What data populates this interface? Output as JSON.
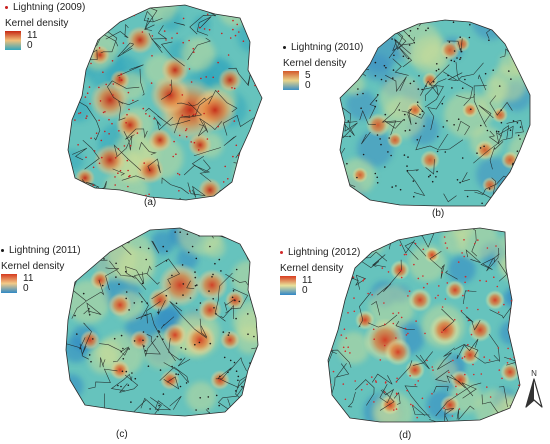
{
  "panels": [
    {
      "id": "a",
      "caption": "(a)",
      "legend": {
        "series": "Lightning (2009)",
        "title": "Kernel density",
        "max": "11",
        "min": "0"
      },
      "dot_color": "#c81e1e",
      "ramp": [
        "#c62814",
        "#f1c07a",
        "#33a6bd"
      ]
    },
    {
      "id": "b",
      "caption": "(b)",
      "legend": {
        "series": "Lightning (2010)",
        "title": "Kernel density",
        "max": "5",
        "min": "0"
      },
      "dot_color": "#1b1b1b",
      "ramp": [
        "#d4582a",
        "#e9d48a",
        "#3c8fc4"
      ]
    },
    {
      "id": "c",
      "caption": "(c)",
      "legend": {
        "series": "Lightning (2011)",
        "title": "Kernel density",
        "max": "11",
        "min": "0"
      },
      "dot_color": "#1b1b1b",
      "ramp": [
        "#d63a1f",
        "#f2cb88",
        "#2f88c5"
      ]
    },
    {
      "id": "d",
      "caption": "(d)",
      "legend": {
        "series": "Lightning (2012)",
        "title": "Kernel density",
        "max": "11",
        "min": "0"
      },
      "dot_color": "#d22a2a",
      "ramp": [
        "#d83a1e",
        "#e9e29a",
        "#2f86c7"
      ]
    }
  ],
  "north_arrow": {
    "label": "N",
    "icon": "north-arrow-icon"
  }
}
